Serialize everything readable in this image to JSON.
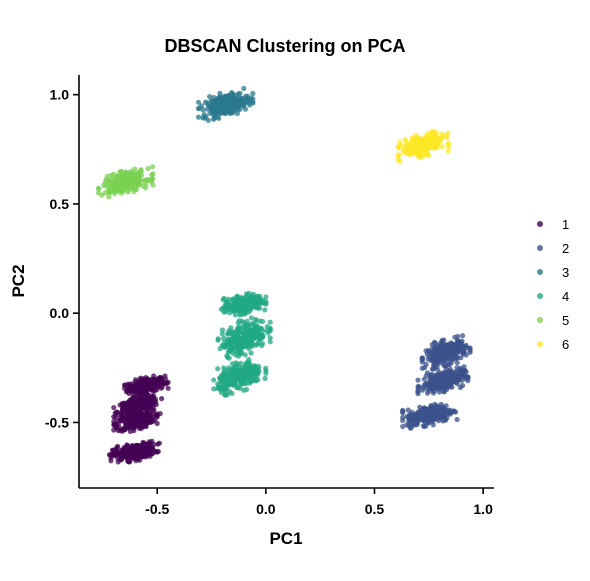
{
  "chart_data": {
    "type": "scatter",
    "title": "DBSCAN Clustering on PCA",
    "xlabel": "PC1",
    "ylabel": "PC2",
    "xlim": [
      -0.86,
      1.05
    ],
    "ylim": [
      -0.8,
      1.09
    ],
    "x_ticks": [
      -0.5,
      0.0,
      0.5,
      1.0
    ],
    "x_tick_labels": [
      "-0.5",
      "0.0",
      "0.5",
      "1.0"
    ],
    "y_ticks": [
      -0.5,
      0.0,
      0.5,
      1.0
    ],
    "y_tick_labels": [
      "-0.5",
      "0.0",
      "0.5",
      "1.0"
    ],
    "grid": false,
    "legend_position": "right",
    "series": [
      {
        "name": "1",
        "color": "#440154",
        "groups": [
          {
            "x": [
              -0.65,
              -0.45
            ],
            "y": [
              -0.38,
              -0.28
            ]
          },
          {
            "x": [
              -0.7,
              -0.48
            ],
            "y": [
              -0.5,
              -0.36
            ]
          },
          {
            "x": [
              -0.7,
              -0.5
            ],
            "y": [
              -0.55,
              -0.44
            ]
          },
          {
            "x": [
              -0.72,
              -0.49
            ],
            "y": [
              -0.69,
              -0.58
            ]
          }
        ]
      },
      {
        "name": "2",
        "color": "#3B528B",
        "groups": [
          {
            "x": [
              0.72,
              0.94
            ],
            "y": [
              -0.26,
              -0.1
            ]
          },
          {
            "x": [
              0.7,
              0.93
            ],
            "y": [
              -0.38,
              -0.24
            ]
          },
          {
            "x": [
              0.63,
              0.88
            ],
            "y": [
              -0.53,
              -0.4
            ]
          }
        ]
      },
      {
        "name": "3",
        "color": "#2A788E",
        "groups": [
          {
            "x": [
              -0.31,
              -0.06
            ],
            "y": [
              0.88,
              1.03
            ]
          }
        ]
      },
      {
        "name": "4",
        "color": "#22A884",
        "groups": [
          {
            "x": [
              -0.21,
              0.0
            ],
            "y": [
              -0.02,
              0.1
            ]
          },
          {
            "x": [
              -0.22,
              0.02
            ],
            "y": [
              -0.22,
              0.0
            ]
          },
          {
            "x": [
              -0.24,
              0.0
            ],
            "y": [
              -0.38,
              -0.2
            ]
          }
        ]
      },
      {
        "name": "5",
        "color": "#7AD151",
        "groups": [
          {
            "x": [
              -0.77,
              -0.52
            ],
            "y": [
              0.53,
              0.67
            ]
          }
        ]
      },
      {
        "name": "6",
        "color": "#FDE725",
        "groups": [
          {
            "x": [
              0.61,
              0.84
            ],
            "y": [
              0.7,
              0.84
            ]
          }
        ]
      }
    ]
  }
}
